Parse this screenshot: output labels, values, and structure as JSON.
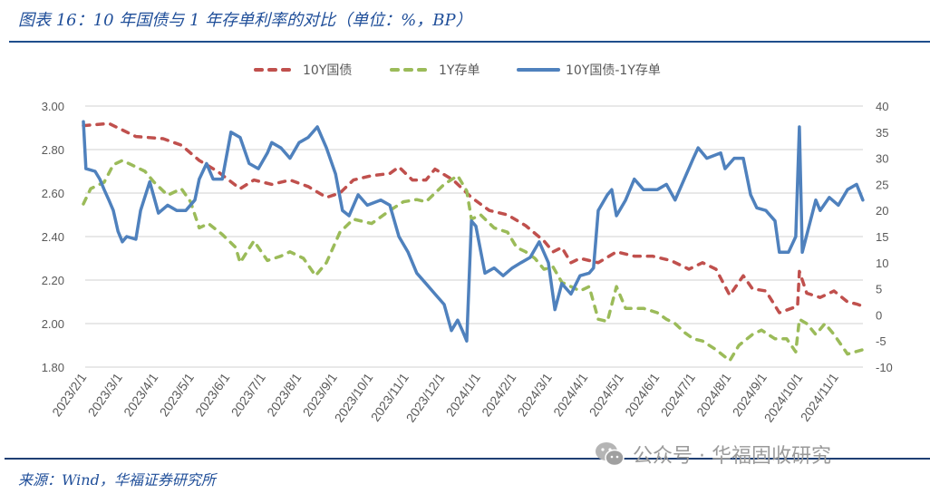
{
  "title": "图表 16：10 年国债与 1 年存单利率的对比（单位：%，BP）",
  "source": "来源：Wind，华福证券研究所",
  "watermark": "公众号 · 华福固收研究",
  "chart_data": {
    "type": "line",
    "title": "图表 16：10 年国债与 1 年存单利率的对比（单位：%，BP）",
    "x_unit": "months since 2023/2/1",
    "x_tick_labels": [
      "2023/2/1",
      "2023/3/1",
      "2023/4/1",
      "2023/5/1",
      "2023/6/1",
      "2023/7/1",
      "2023/8/1",
      "2023/9/1",
      "2023/10/1",
      "2023/11/1",
      "2023/12/1",
      "2024/1/1",
      "2024/2/1",
      "2024/3/1",
      "2024/4/1",
      "2024/5/1",
      "2024/6/1",
      "2024/7/1",
      "2024/8/1",
      "2024/9/1",
      "2024/10/1",
      "2024/11/1"
    ],
    "y_left": {
      "ylim": [
        1.8,
        3.0
      ],
      "ticks": [
        "1.80",
        "2.00",
        "2.20",
        "2.40",
        "2.60",
        "2.80",
        "3.00"
      ]
    },
    "y_right": {
      "ylim": [
        -10,
        40
      ],
      "ticks": [
        "-10",
        "-5",
        "0",
        "5",
        "10",
        "15",
        "20",
        "25",
        "30",
        "35",
        "40"
      ]
    },
    "legend_position": "top",
    "grid": true,
    "colors": {
      "y10": "#c0504d",
      "y1": "#9bbb59",
      "spread": "#4f81bd"
    },
    "series": [
      {
        "name": "10Y国债",
        "axis": "left",
        "style": "dashed",
        "points": [
          [
            0,
            2.91
          ],
          [
            0.7,
            2.92
          ],
          [
            1.44,
            2.86
          ],
          [
            2.19,
            2.85
          ],
          [
            2.69,
            2.82
          ],
          [
            3.18,
            2.75
          ],
          [
            3.68,
            2.7
          ],
          [
            4.3,
            2.62
          ],
          [
            4.68,
            2.66
          ],
          [
            5.17,
            2.64
          ],
          [
            5.67,
            2.66
          ],
          [
            6.17,
            2.63
          ],
          [
            6.67,
            2.58
          ],
          [
            7.04,
            2.6
          ],
          [
            7.41,
            2.66
          ],
          [
            7.91,
            2.68
          ],
          [
            8.41,
            2.69
          ],
          [
            8.66,
            2.72
          ],
          [
            9.03,
            2.66
          ],
          [
            9.4,
            2.66
          ],
          [
            9.65,
            2.71
          ],
          [
            10.15,
            2.66
          ],
          [
            10.65,
            2.58
          ],
          [
            11.14,
            2.52
          ],
          [
            11.64,
            2.5
          ],
          [
            12.14,
            2.45
          ],
          [
            12.64,
            2.38
          ],
          [
            12.89,
            2.33
          ],
          [
            13.13,
            2.35
          ],
          [
            13.38,
            2.28
          ],
          [
            13.63,
            2.3
          ],
          [
            14.13,
            2.28
          ],
          [
            14.63,
            2.33
          ],
          [
            15.12,
            2.31
          ],
          [
            15.62,
            2.31
          ],
          [
            16.12,
            2.29
          ],
          [
            16.62,
            2.25
          ],
          [
            16.99,
            2.28
          ],
          [
            17.36,
            2.25
          ],
          [
            17.74,
            2.13
          ],
          [
            18.11,
            2.22
          ],
          [
            18.36,
            2.16
          ],
          [
            18.73,
            2.15
          ],
          [
            19.1,
            2.05
          ],
          [
            19.6,
            2.08
          ],
          [
            19.65,
            2.24
          ],
          [
            19.85,
            2.14
          ],
          [
            20.22,
            2.12
          ],
          [
            20.6,
            2.15
          ],
          [
            20.97,
            2.1
          ],
          [
            21.22,
            2.09
          ],
          [
            21.39,
            2.08
          ]
        ]
      },
      {
        "name": "1Y存单",
        "axis": "left",
        "style": "dashed",
        "points": [
          [
            0,
            2.55
          ],
          [
            0.2,
            2.62
          ],
          [
            0.57,
            2.65
          ],
          [
            0.82,
            2.73
          ],
          [
            1.07,
            2.75
          ],
          [
            1.32,
            2.73
          ],
          [
            1.69,
            2.7
          ],
          [
            1.94,
            2.65
          ],
          [
            2.31,
            2.59
          ],
          [
            2.69,
            2.62
          ],
          [
            2.94,
            2.56
          ],
          [
            3.18,
            2.44
          ],
          [
            3.43,
            2.46
          ],
          [
            3.81,
            2.41
          ],
          [
            4.18,
            2.35
          ],
          [
            4.3,
            2.28
          ],
          [
            4.68,
            2.38
          ],
          [
            5.05,
            2.29
          ],
          [
            5.42,
            2.31
          ],
          [
            5.67,
            2.33
          ],
          [
            6.04,
            2.3
          ],
          [
            6.37,
            2.22
          ],
          [
            6.67,
            2.28
          ],
          [
            7.04,
            2.42
          ],
          [
            7.41,
            2.48
          ],
          [
            7.91,
            2.46
          ],
          [
            8.41,
            2.52
          ],
          [
            8.78,
            2.56
          ],
          [
            9.15,
            2.57
          ],
          [
            9.4,
            2.56
          ],
          [
            9.9,
            2.64
          ],
          [
            10.27,
            2.68
          ],
          [
            10.52,
            2.61
          ],
          [
            10.65,
            2.48
          ],
          [
            10.9,
            2.5
          ],
          [
            11.27,
            2.44
          ],
          [
            11.64,
            2.42
          ],
          [
            11.89,
            2.35
          ],
          [
            12.14,
            2.33
          ],
          [
            12.39,
            2.3
          ],
          [
            12.64,
            2.25
          ],
          [
            12.89,
            2.26
          ],
          [
            13.13,
            2.19
          ],
          [
            13.63,
            2.15
          ],
          [
            13.88,
            2.17
          ],
          [
            14.13,
            2.02
          ],
          [
            14.38,
            2.01
          ],
          [
            14.63,
            2.17
          ],
          [
            14.88,
            2.07
          ],
          [
            15.12,
            2.07
          ],
          [
            15.37,
            2.07
          ],
          [
            15.75,
            2.05
          ],
          [
            16.0,
            2.02
          ],
          [
            16.24,
            2.0
          ],
          [
            16.49,
            1.96
          ],
          [
            16.74,
            1.93
          ],
          [
            16.99,
            1.92
          ],
          [
            17.36,
            1.88
          ],
          [
            17.74,
            1.83
          ],
          [
            17.99,
            1.9
          ],
          [
            18.36,
            1.95
          ],
          [
            18.61,
            1.97
          ],
          [
            18.98,
            1.93
          ],
          [
            19.3,
            1.93
          ],
          [
            19.55,
            1.87
          ],
          [
            19.65,
            2.02
          ],
          [
            19.85,
            2.0
          ],
          [
            20.1,
            1.95
          ],
          [
            20.35,
            2.0
          ],
          [
            20.6,
            1.95
          ],
          [
            20.97,
            1.86
          ],
          [
            21.39,
            1.88
          ]
        ]
      },
      {
        "name": "10Y国债-1Y存单",
        "axis": "right",
        "style": "solid",
        "points": [
          [
            0,
            37
          ],
          [
            0.07,
            28
          ],
          [
            0.32,
            27.5
          ],
          [
            0.45,
            26
          ],
          [
            0.57,
            24
          ],
          [
            0.7,
            22
          ],
          [
            0.82,
            20
          ],
          [
            0.95,
            16
          ],
          [
            1.07,
            14
          ],
          [
            1.19,
            15
          ],
          [
            1.44,
            14.5
          ],
          [
            1.57,
            20
          ],
          [
            1.82,
            25.5
          ],
          [
            2.06,
            19.5
          ],
          [
            2.31,
            21
          ],
          [
            2.56,
            20
          ],
          [
            2.81,
            20
          ],
          [
            3.06,
            22
          ],
          [
            3.18,
            26
          ],
          [
            3.38,
            29
          ],
          [
            3.56,
            26
          ],
          [
            3.81,
            26
          ],
          [
            4.05,
            35
          ],
          [
            4.3,
            34
          ],
          [
            4.55,
            29
          ],
          [
            4.8,
            28
          ],
          [
            5.05,
            31
          ],
          [
            5.17,
            33
          ],
          [
            5.42,
            32
          ],
          [
            5.67,
            30
          ],
          [
            5.92,
            33
          ],
          [
            6.17,
            34
          ],
          [
            6.42,
            36
          ],
          [
            6.67,
            32
          ],
          [
            6.92,
            27
          ],
          [
            7.11,
            20
          ],
          [
            7.29,
            19
          ],
          [
            7.54,
            23
          ],
          [
            7.79,
            21
          ],
          [
            8.16,
            22
          ],
          [
            8.41,
            21
          ],
          [
            8.66,
            15
          ],
          [
            8.91,
            12
          ],
          [
            9.15,
            8
          ],
          [
            9.4,
            6
          ],
          [
            9.65,
            4
          ],
          [
            9.9,
            2
          ],
          [
            10.1,
            -3
          ],
          [
            10.27,
            -1
          ],
          [
            10.4,
            -3
          ],
          [
            10.52,
            -5
          ],
          [
            10.65,
            18
          ],
          [
            10.77,
            17
          ],
          [
            11.02,
            8
          ],
          [
            11.27,
            9
          ],
          [
            11.52,
            7.5
          ],
          [
            11.77,
            9
          ],
          [
            12.01,
            10
          ],
          [
            12.26,
            11
          ],
          [
            12.51,
            14
          ],
          [
            12.76,
            10
          ],
          [
            12.94,
            1
          ],
          [
            13.13,
            6
          ],
          [
            13.38,
            4
          ],
          [
            13.63,
            7.5
          ],
          [
            13.88,
            8
          ],
          [
            14.0,
            9
          ],
          [
            14.13,
            20
          ],
          [
            14.38,
            23
          ],
          [
            14.5,
            24
          ],
          [
            14.63,
            19
          ],
          [
            14.88,
            22
          ],
          [
            15.12,
            26
          ],
          [
            15.37,
            24
          ],
          [
            15.75,
            24
          ],
          [
            16.0,
            25
          ],
          [
            16.24,
            22
          ],
          [
            16.49,
            26
          ],
          [
            16.74,
            30
          ],
          [
            16.87,
            32
          ],
          [
            17.11,
            30
          ],
          [
            17.49,
            31
          ],
          [
            17.61,
            28
          ],
          [
            17.86,
            30
          ],
          [
            18.11,
            30
          ],
          [
            18.31,
            23
          ],
          [
            18.48,
            20.5
          ],
          [
            18.73,
            20
          ],
          [
            18.98,
            18
          ],
          [
            19.1,
            12
          ],
          [
            19.35,
            12
          ],
          [
            19.55,
            15
          ],
          [
            19.65,
            36
          ],
          [
            19.73,
            12
          ],
          [
            20.1,
            22
          ],
          [
            20.22,
            20
          ],
          [
            20.47,
            22.5
          ],
          [
            20.72,
            21
          ],
          [
            20.97,
            24
          ],
          [
            21.22,
            25
          ],
          [
            21.39,
            22
          ]
        ]
      }
    ]
  }
}
